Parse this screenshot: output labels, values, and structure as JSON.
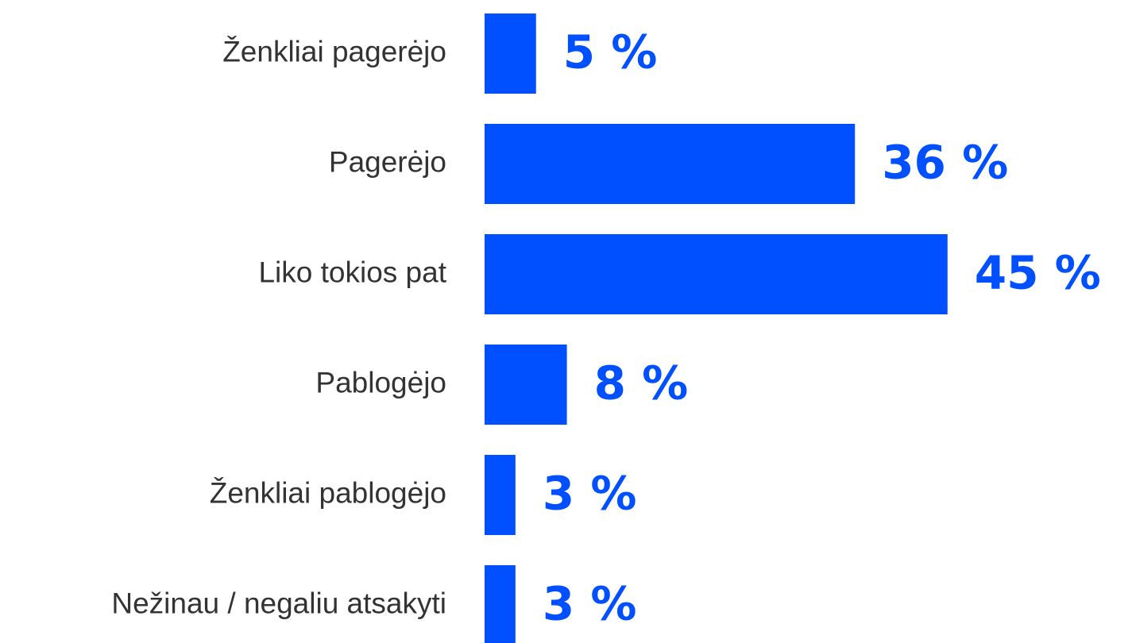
{
  "chart_data": {
    "type": "barh",
    "categories": [
      "Ženkliai pagerėjo",
      "Pagerėjo",
      "Liko tokios pat",
      "Pablogėjo",
      "Ženkliai pablogėjo",
      "Nežinau / negaliu atsakyti"
    ],
    "values": [
      5,
      36,
      45,
      8,
      3,
      3
    ],
    "value_labels": [
      "5 %",
      "36 %",
      "45 %",
      "8 %",
      "3 %",
      "3 %"
    ],
    "color": "#0050ff"
  }
}
